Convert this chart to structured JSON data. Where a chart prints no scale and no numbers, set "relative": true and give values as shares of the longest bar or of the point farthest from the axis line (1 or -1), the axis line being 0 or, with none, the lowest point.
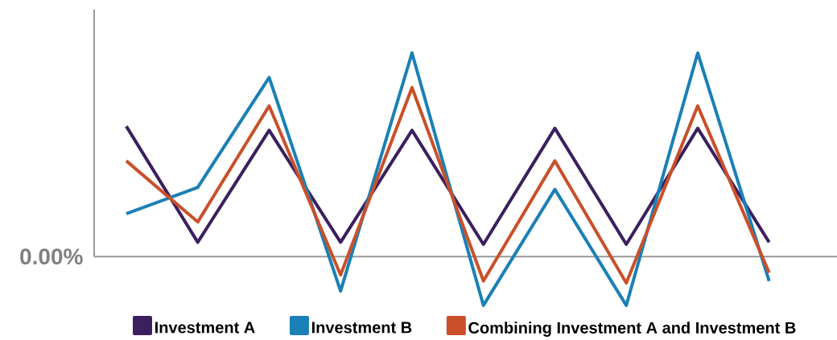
{
  "chart_data": {
    "type": "line",
    "relative": true,
    "categories": [
      null,
      null,
      null,
      null,
      null,
      null,
      null,
      null,
      null,
      null
    ],
    "series": [
      {
        "name": "Investment A",
        "color": "#3b1f5e",
        "values": [
          0.64,
          0.07,
          0.62,
          0.07,
          0.62,
          0.06,
          0.63,
          0.06,
          0.63,
          0.07
        ]
      },
      {
        "name": "Investment B",
        "color": "#1a80b6",
        "values": [
          0.21,
          0.34,
          0.88,
          -0.17,
          1.0,
          -0.24,
          0.33,
          -0.24,
          1.0,
          -0.12
        ]
      },
      {
        "name": "Combining Investment A and Investment B",
        "color": "#c9502a",
        "values": [
          0.47,
          0.17,
          0.74,
          -0.09,
          0.83,
          -0.12,
          0.47,
          -0.13,
          0.74,
          -0.08
        ]
      }
    ],
    "annotations": [
      "0.00%"
    ],
    "legend": "bottom",
    "marker": "none",
    "line_style": "solid"
  }
}
